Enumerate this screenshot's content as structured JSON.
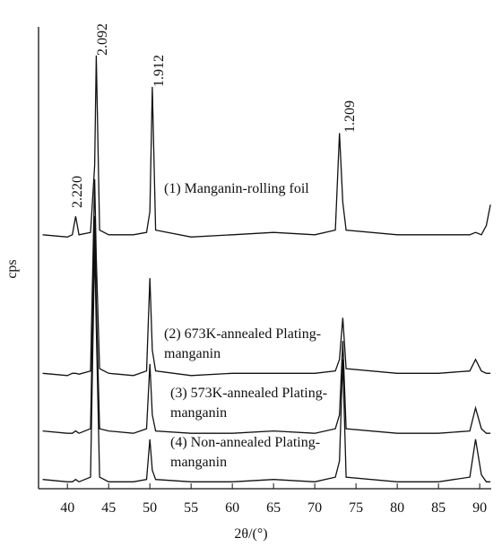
{
  "chart_data": {
    "type": "line",
    "xlabel": "2θ/(°)",
    "ylabel": "cps",
    "annotations": [
      "2.220",
      "2.092",
      "1.912",
      "1.209"
    ],
    "xlim": [
      36.5,
      91.4
    ],
    "xticks": [
      40,
      45,
      50,
      55,
      60,
      65,
      70,
      75,
      80,
      85,
      90
    ],
    "ylim": [
      0,
      100
    ],
    "x": [
      37,
      40,
      40.6,
      41,
      41.4,
      42.8,
      43.3,
      43.5,
      43.9,
      45,
      48,
      49.6,
      50.0,
      50.3,
      50.7,
      55,
      60,
      65,
      70,
      72.5,
      73.0,
      73.4,
      73.8,
      80,
      85,
      88.8,
      89.5,
      90.2,
      90.8,
      91.3
    ],
    "series": [
      {
        "name": "(1) Manganin-rolling foil",
        "color": "#111111",
        "values": [
          55,
          54.5,
          55,
          59,
          55,
          55.5,
          70,
          93.8,
          56,
          55,
          55,
          55.5,
          60,
          87,
          56,
          54.5,
          55,
          55.5,
          55,
          56,
          77,
          62,
          56,
          55,
          55,
          55,
          55.5,
          55,
          57,
          61.5
        ]
      },
      {
        "name": "(2) 673K-annealed Plating-manganin",
        "color": "#111111",
        "values": [
          25,
          24.5,
          25,
          25,
          24.8,
          25.5,
          67,
          50,
          26,
          25,
          24.5,
          25.5,
          45.6,
          30,
          25.5,
          24.5,
          25,
          25,
          25,
          25.5,
          28,
          37,
          26,
          25,
          25,
          25.5,
          28,
          25.5,
          25,
          25
        ]
      },
      {
        "name": "(3) 573K-annealed Plating-manganin",
        "color": "#111111",
        "values": [
          12.5,
          12,
          12,
          12.5,
          12,
          13,
          59,
          40,
          13,
          12.5,
          12,
          13,
          27,
          16,
          12.5,
          12,
          12,
          12.5,
          12,
          13,
          16,
          32,
          13,
          12,
          12,
          12.5,
          17.5,
          13,
          12,
          12
        ]
      },
      {
        "name": "(4) Non-annealed Plating-manganin",
        "color": "#111111",
        "values": [
          2,
          1.5,
          1.5,
          2,
          1.5,
          2.5,
          53,
          35,
          2.5,
          1.5,
          1.5,
          2,
          10.7,
          4,
          2,
          1.5,
          1.5,
          2,
          1.5,
          2.5,
          6,
          28,
          2.5,
          1.5,
          1.5,
          2.5,
          10.7,
          3,
          1.5,
          1.5
        ]
      }
    ]
  }
}
